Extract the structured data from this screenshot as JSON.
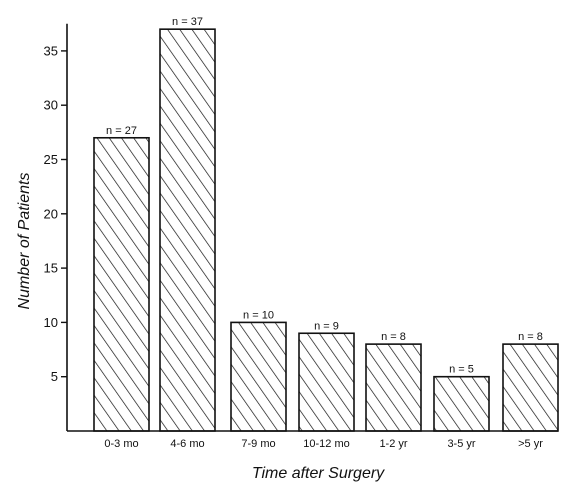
{
  "chart_data": {
    "type": "bar",
    "title": "",
    "xlabel": "Time after Surgery",
    "ylabel": "Number of Patients",
    "categories": [
      "0-3 mo",
      "4-6 mo",
      "7-9 mo",
      "10-12 mo",
      "1-2 yr",
      "3-5 yr",
      ">5 yr"
    ],
    "values": [
      27,
      37,
      10,
      9,
      8,
      5,
      8
    ],
    "data_labels": [
      "n = 27",
      "n = 37",
      "n = 10",
      "n = 9",
      "n = 8",
      "n = 5",
      "n = 8"
    ],
    "ylim": [
      0,
      37.5
    ],
    "yticks": [
      "5",
      "10",
      "15",
      "20",
      "25",
      "30",
      "35"
    ],
    "grid": false,
    "bar_fill": "diagonal hatch",
    "colors": {
      "ink": "#111111",
      "background": "#ffffff"
    }
  }
}
